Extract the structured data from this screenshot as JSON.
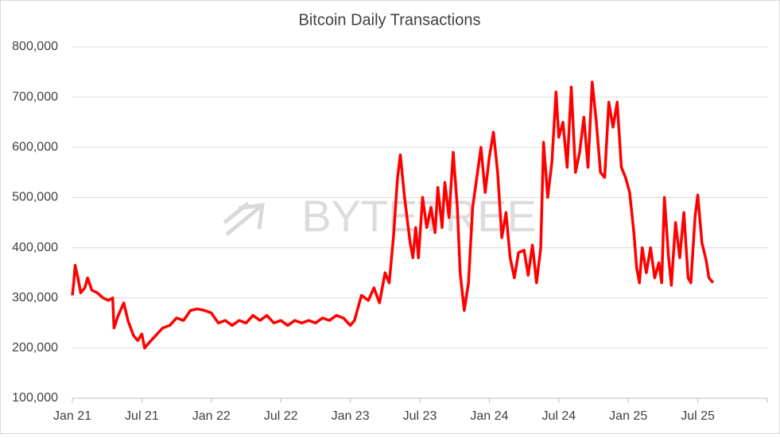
{
  "chart_data": {
    "type": "line",
    "title": "Bitcoin Daily Transactions",
    "watermark": "BYTETREE",
    "xlim": [
      2021,
      2026
    ],
    "xticks": [
      {
        "value": 2021,
        "label": "Jan 21"
      },
      {
        "value": 2021.5,
        "label": "Jul 21"
      },
      {
        "value": 2022,
        "label": "Jan 22"
      },
      {
        "value": 2022.5,
        "label": "Jul 22"
      },
      {
        "value": 2023,
        "label": "Jan 23"
      },
      {
        "value": 2023.5,
        "label": "Jul 23"
      },
      {
        "value": 2024,
        "label": "Jan 24"
      },
      {
        "value": 2024.5,
        "label": "Jul 24"
      },
      {
        "value": 2025,
        "label": "Jan 25"
      },
      {
        "value": 2025.5,
        "label": "Jul 25"
      }
    ],
    "ylim": [
      100000,
      800000
    ],
    "yticks": [
      {
        "value": 100000,
        "label": "100,000"
      },
      {
        "value": 200000,
        "label": "200,000"
      },
      {
        "value": 300000,
        "label": "300,000"
      },
      {
        "value": 400000,
        "label": "400,000"
      },
      {
        "value": 500000,
        "label": "500,000"
      },
      {
        "value": 600000,
        "label": "600,000"
      },
      {
        "value": 700000,
        "label": "700,000"
      },
      {
        "value": 800000,
        "label": "800,000"
      }
    ],
    "grid": true,
    "x": [
      2021.0,
      2021.01,
      2021.02,
      2021.04,
      2021.06,
      2021.09,
      2021.11,
      2021.14,
      2021.18,
      2021.22,
      2021.26,
      2021.29,
      2021.3,
      2021.33,
      2021.37,
      2021.4,
      2021.44,
      2021.47,
      2021.5,
      2021.52,
      2021.55,
      2021.6,
      2021.65,
      2021.7,
      2021.75,
      2021.8,
      2021.85,
      2021.9,
      2021.95,
      2022.0,
      2022.05,
      2022.1,
      2022.15,
      2022.2,
      2022.25,
      2022.3,
      2022.35,
      2022.4,
      2022.45,
      2022.5,
      2022.55,
      2022.6,
      2022.65,
      2022.7,
      2022.75,
      2022.8,
      2022.85,
      2022.9,
      2022.95,
      2023.0,
      2023.03,
      2023.08,
      2023.13,
      2023.17,
      2023.21,
      2023.25,
      2023.28,
      2023.31,
      2023.34,
      2023.36,
      2023.39,
      2023.43,
      2023.45,
      2023.47,
      2023.49,
      2023.52,
      2023.55,
      2023.58,
      2023.61,
      2023.63,
      2023.66,
      2023.68,
      2023.71,
      2023.74,
      2023.77,
      2023.79,
      2023.82,
      2023.85,
      2023.88,
      2023.91,
      2023.94,
      2023.97,
      2024.0,
      2024.03,
      2024.06,
      2024.09,
      2024.12,
      2024.15,
      2024.18,
      2024.21,
      2024.25,
      2024.28,
      2024.31,
      2024.34,
      2024.37,
      2024.39,
      2024.42,
      2024.45,
      2024.48,
      2024.5,
      2024.53,
      2024.56,
      2024.59,
      2024.62,
      2024.65,
      2024.68,
      2024.71,
      2024.74,
      2024.77,
      2024.8,
      2024.83,
      2024.86,
      2024.89,
      2024.92,
      2024.95,
      2024.98,
      2025.01,
      2025.04,
      2025.06,
      2025.08,
      2025.1,
      2025.13,
      2025.16,
      2025.19,
      2025.22,
      2025.24,
      2025.26,
      2025.29,
      2025.31,
      2025.34,
      2025.37,
      2025.4,
      2025.43,
      2025.45,
      2025.48,
      2025.5,
      2025.53,
      2025.56,
      2025.58,
      2025.61
    ],
    "series": [
      {
        "name": "Bitcoin Daily Transactions",
        "color": "#ff0000",
        "values": [
          305000,
          330000,
          365000,
          340000,
          310000,
          320000,
          340000,
          315000,
          310000,
          300000,
          295000,
          300000,
          240000,
          265000,
          290000,
          255000,
          225000,
          215000,
          228000,
          200000,
          210000,
          225000,
          240000,
          245000,
          260000,
          255000,
          275000,
          278000,
          275000,
          270000,
          250000,
          255000,
          245000,
          255000,
          250000,
          265000,
          255000,
          265000,
          250000,
          255000,
          245000,
          255000,
          250000,
          255000,
          250000,
          260000,
          255000,
          265000,
          260000,
          245000,
          255000,
          305000,
          295000,
          320000,
          290000,
          350000,
          330000,
          420000,
          540000,
          585000,
          500000,
          410000,
          380000,
          440000,
          380000,
          500000,
          440000,
          480000,
          430000,
          520000,
          440000,
          530000,
          460000,
          590000,
          480000,
          350000,
          275000,
          330000,
          480000,
          540000,
          600000,
          510000,
          580000,
          630000,
          550000,
          420000,
          470000,
          380000,
          340000,
          390000,
          395000,
          345000,
          405000,
          330000,
          400000,
          610000,
          500000,
          570000,
          710000,
          620000,
          650000,
          560000,
          720000,
          550000,
          590000,
          660000,
          560000,
          730000,
          650000,
          550000,
          540000,
          690000,
          640000,
          690000,
          560000,
          540000,
          510000,
          430000,
          360000,
          330000,
          400000,
          350000,
          400000,
          340000,
          370000,
          330000,
          500000,
          380000,
          325000,
          450000,
          380000,
          470000,
          340000,
          330000,
          460000,
          505000,
          410000,
          375000,
          340000,
          330000
        ]
      }
    ]
  }
}
